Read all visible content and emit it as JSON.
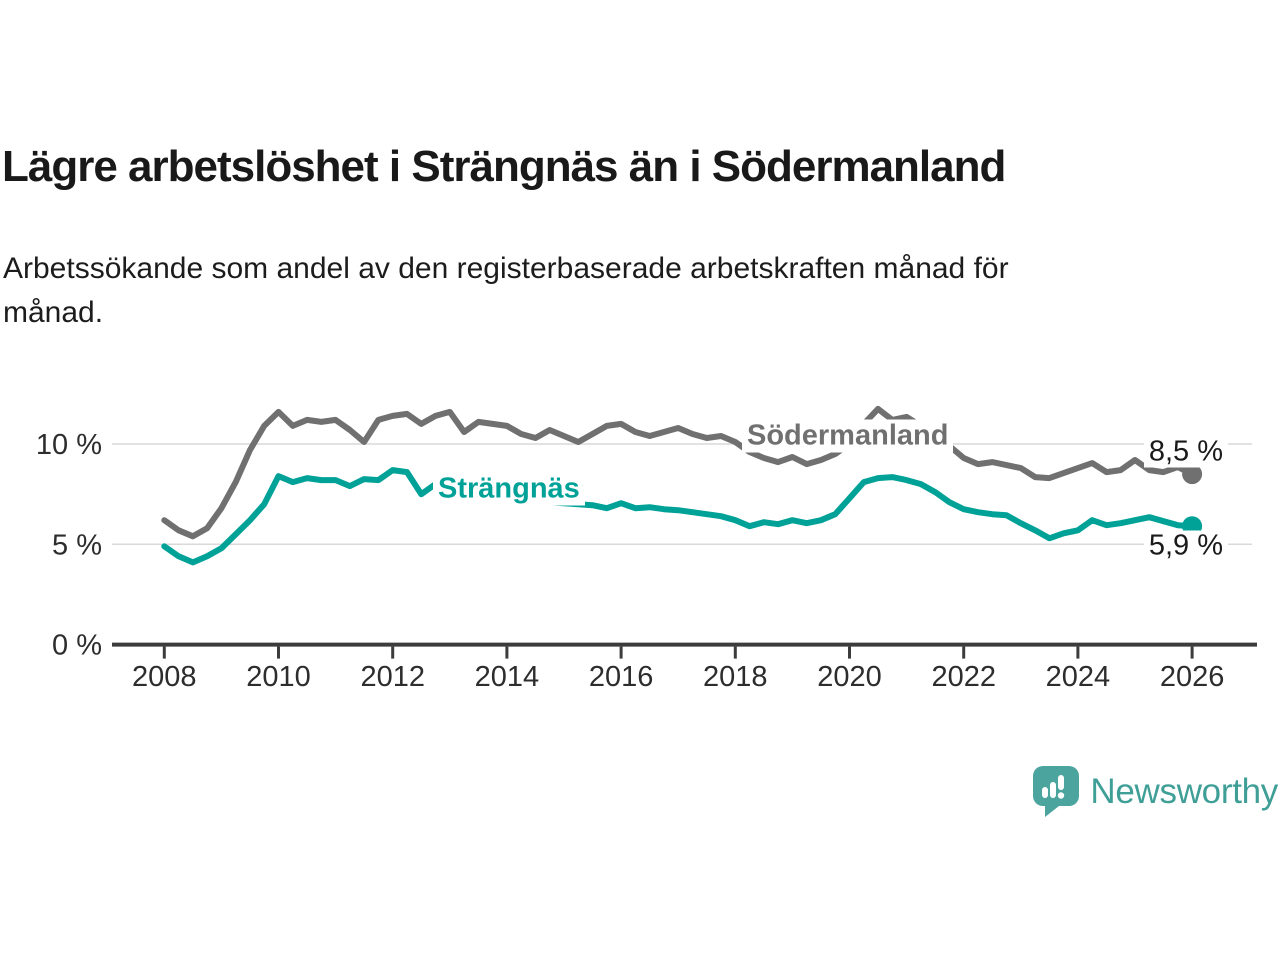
{
  "header": {
    "title": "Lägre arbetslöshet i Strängnäs än i Södermanland",
    "subtitle_lines": [
      "Arbetssökande som andel av den registerbaserade arbetskraften månad för",
      "månad."
    ]
  },
  "chart_data": {
    "type": "line",
    "x_unit": "year",
    "x_start": 2008,
    "x_step": 0.25,
    "x_ticks": [
      2008,
      2010,
      2012,
      2014,
      2016,
      2018,
      2020,
      2022,
      2024,
      2026
    ],
    "y_ticks": [
      {
        "value": 0,
        "label": "0 %"
      },
      {
        "value": 5,
        "label": "5 %"
      },
      {
        "value": 10,
        "label": "10 %"
      }
    ],
    "ylim": [
      0,
      12.7
    ],
    "gridlines": [
      5,
      10
    ],
    "grid_on": true,
    "legend_position": "inline-labels",
    "series": [
      {
        "name": "Södermanland",
        "color": "#707070",
        "end_label": "8,5 %",
        "end_value": 8.5,
        "values": [
          6.2,
          5.7,
          5.4,
          5.8,
          6.8,
          8.1,
          9.7,
          10.9,
          11.6,
          10.9,
          11.2,
          11.1,
          11.2,
          10.7,
          10.1,
          11.2,
          11.4,
          11.5,
          11.0,
          11.4,
          11.6,
          10.6,
          11.1,
          11.0,
          10.9,
          10.5,
          10.3,
          10.7,
          10.4,
          10.1,
          10.5,
          10.9,
          11.0,
          10.6,
          10.4,
          10.6,
          10.8,
          10.5,
          10.3,
          10.4,
          10.1,
          9.6,
          9.3,
          9.1,
          9.35,
          9.0,
          9.2,
          9.5,
          10.0,
          11.0,
          11.75,
          11.2,
          11.35,
          10.9,
          10.3,
          9.9,
          9.3,
          9.0,
          9.1,
          8.95,
          8.8,
          8.35,
          8.3,
          8.55,
          8.8,
          9.05,
          8.6,
          8.7,
          9.2,
          8.7,
          8.6,
          8.85,
          8.5
        ]
      },
      {
        "name": "Strängnäs",
        "color": "#00a298",
        "end_label": "5,9 %",
        "end_value": 5.9,
        "values": [
          4.9,
          4.4,
          4.1,
          4.4,
          4.8,
          5.5,
          6.2,
          7.0,
          8.4,
          8.1,
          8.3,
          8.2,
          8.2,
          7.9,
          8.25,
          8.2,
          8.7,
          8.6,
          7.5,
          8.0,
          7.8,
          7.6,
          7.5,
          7.4,
          7.3,
          7.2,
          7.15,
          7.1,
          7.05,
          7.0,
          6.95,
          6.8,
          7.05,
          6.8,
          6.85,
          6.75,
          6.7,
          6.6,
          6.5,
          6.4,
          6.2,
          5.9,
          6.1,
          6.0,
          6.2,
          6.05,
          6.2,
          6.5,
          7.3,
          8.1,
          8.3,
          8.35,
          8.2,
          8.0,
          7.6,
          7.1,
          6.75,
          6.6,
          6.5,
          6.45,
          6.05,
          5.7,
          5.3,
          5.55,
          5.7,
          6.2,
          5.95,
          6.05,
          6.2,
          6.35,
          6.15,
          5.95,
          5.9
        ]
      }
    ]
  },
  "footer": {
    "brand": "Newsworthy",
    "logo_icon": "speech-bubble-bar-chart"
  }
}
